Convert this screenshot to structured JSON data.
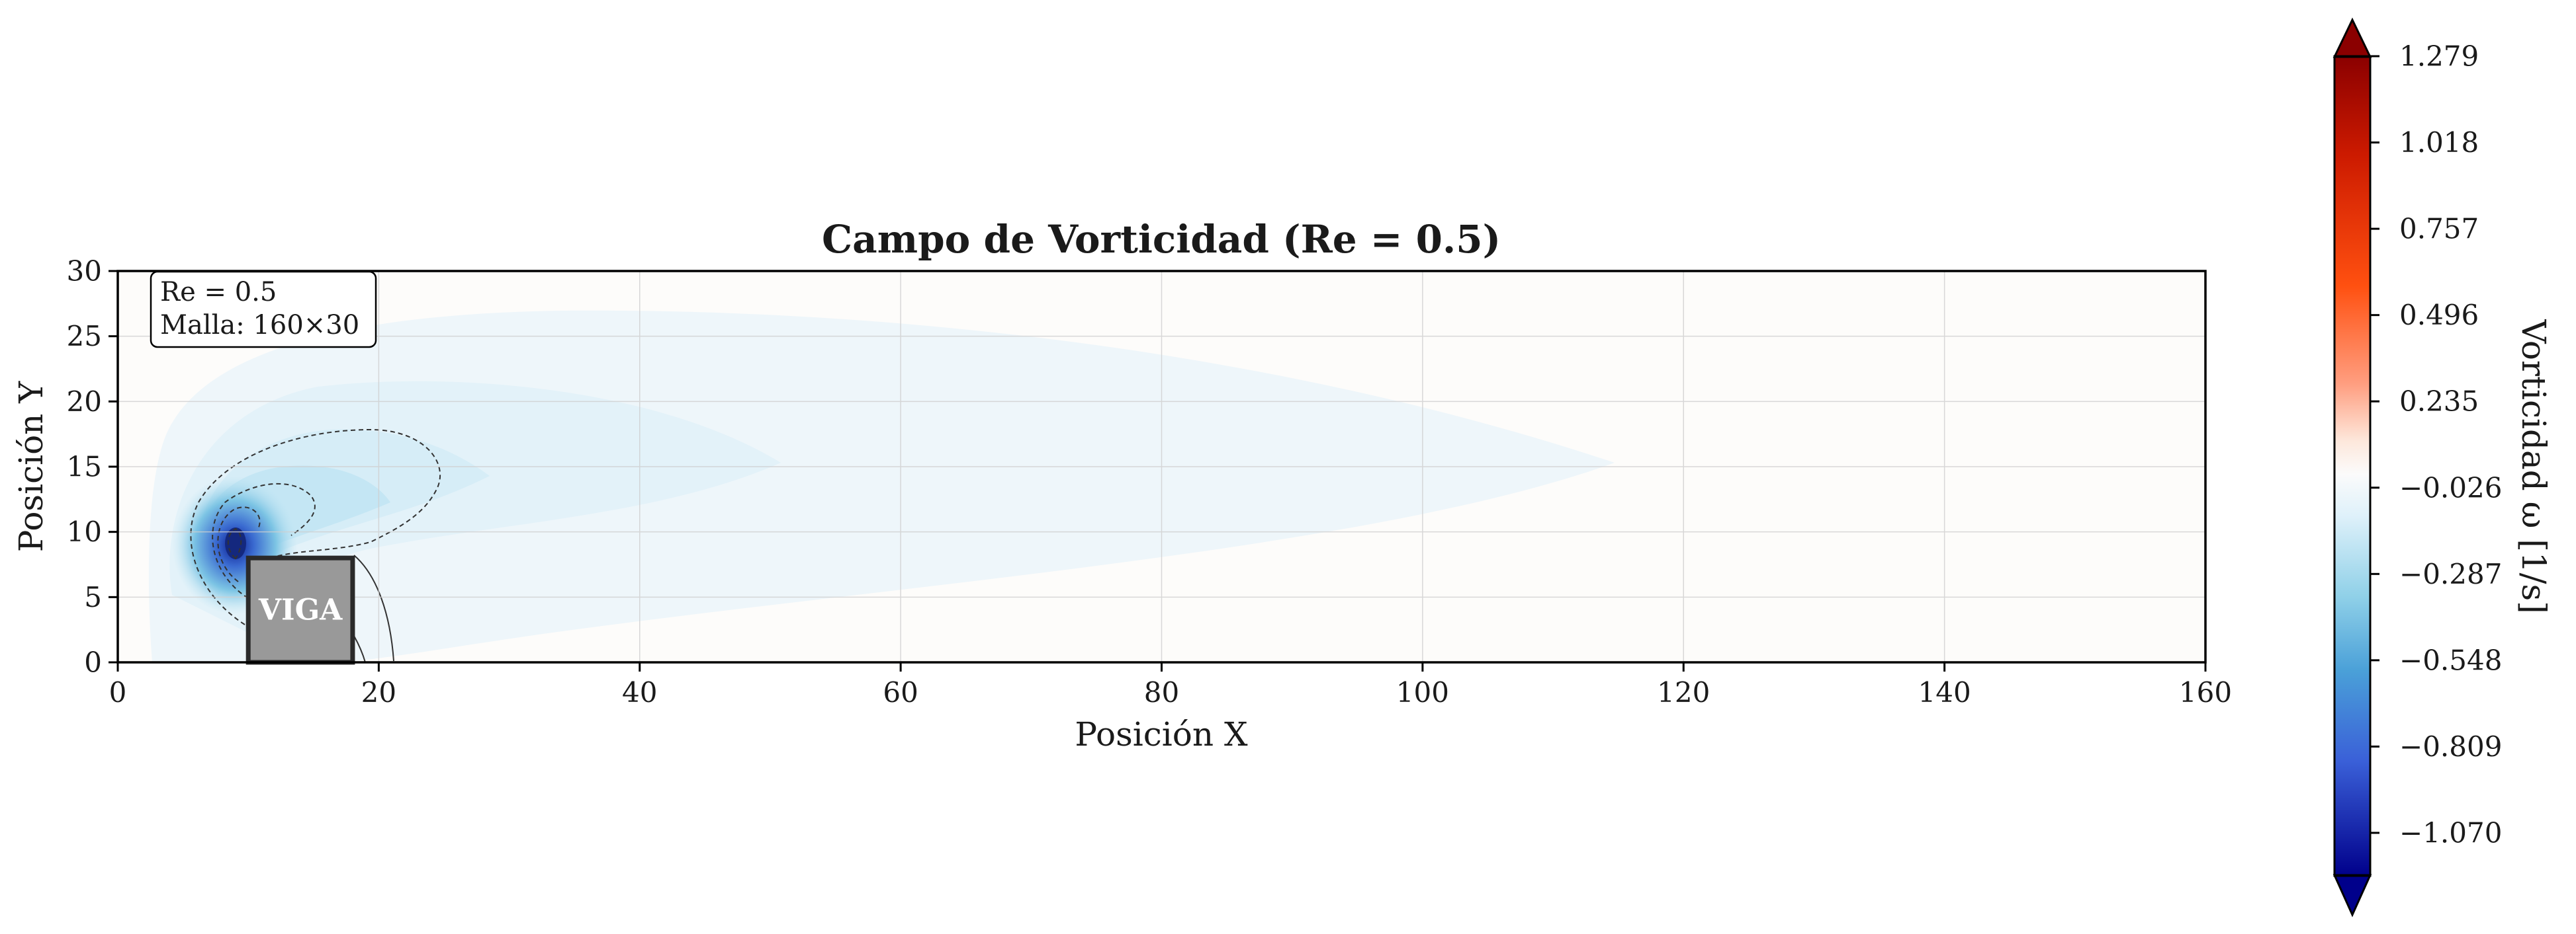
{
  "chart_data": {
    "type": "heatmap",
    "title": "Campo de Vorticidad (Re = 0.5)",
    "xlabel": "Posición X",
    "ylabel": "Posición Y",
    "xlim": [
      0,
      160
    ],
    "ylim": [
      0,
      30
    ],
    "xticks": [
      0,
      20,
      40,
      60,
      80,
      100,
      120,
      140,
      160
    ],
    "yticks": [
      0,
      5,
      10,
      15,
      20,
      25,
      30
    ],
    "grid": true,
    "obstacle": {
      "label": "VIGA",
      "x": [
        10,
        18
      ],
      "y": [
        0,
        8
      ],
      "color": "#999999"
    },
    "info_box": {
      "line1": "Re = 0.5",
      "line2": "Malla: 160×30",
      "placement": "top-left"
    },
    "colorbar": {
      "label": "Vorticidad ω [1/s]",
      "colormap": "blue-white-red (seismic-like)",
      "range": [
        -1.2,
        1.279
      ],
      "extend": "both",
      "ticks": [
        "1.279",
        "1.018",
        "0.757",
        "0.496",
        "0.235",
        "−0.026",
        "−0.287",
        "−0.548",
        "−0.809",
        "−1.070"
      ],
      "tick_values": [
        1.279,
        1.018,
        0.757,
        0.496,
        0.235,
        -0.026,
        -0.287,
        -0.548,
        -0.809,
        -1.07
      ]
    },
    "field_features": [
      {
        "name": "shed vortex core",
        "center": [
          9,
          9
        ],
        "min_value": -1.07
      },
      {
        "name": "vorticity wake",
        "center_y": 15,
        "extends_to_x": 98,
        "value": -0.05
      }
    ],
    "colors": {
      "negative_core": "#00008b",
      "neutral": "#fdfcfa",
      "positive_peak": "#8b0000"
    }
  }
}
